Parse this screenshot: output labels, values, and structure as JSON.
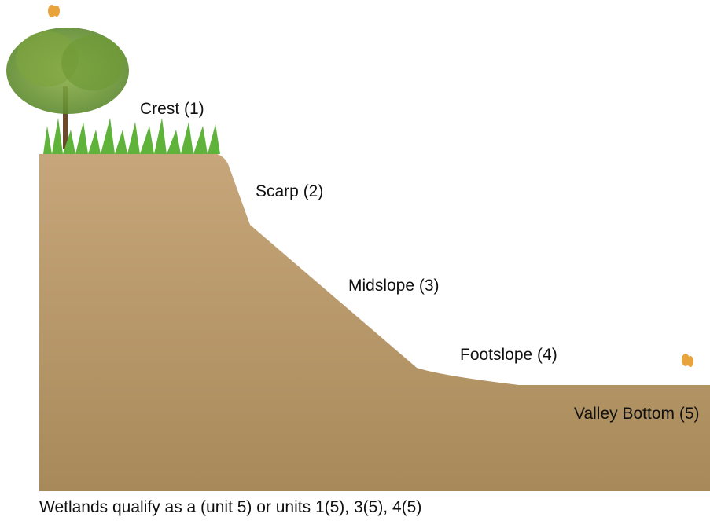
{
  "labels": [
    "Crest (1)",
    "Scarp (2)",
    "Midslope (3)",
    "Footslope (4)",
    "Valley Bottom (5)"
  ],
  "caption": "Wetlands qualify as a (unit 5) or units 1(5), 3(5), 4(5)"
}
